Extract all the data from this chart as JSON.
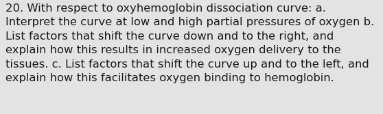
{
  "background_color": "#e3e3e3",
  "lines": [
    "20. With respect to oxyhemoglobin dissociation curve: a.",
    "Interpret the curve at low and high partial pressures of oxygen b.",
    "List factors that shift the curve down and to the right, and",
    "explain how this results in increased oxygen delivery to the",
    "tissues. c. List factors that shift the curve up and to the left, and",
    "explain how this facilitates oxygen binding to hemoglobin."
  ],
  "font_size": 11.8,
  "font_color": "#1a1a1a",
  "font_family": "DejaVu Sans",
  "fig_width": 5.58,
  "fig_height": 1.67,
  "dpi": 100
}
